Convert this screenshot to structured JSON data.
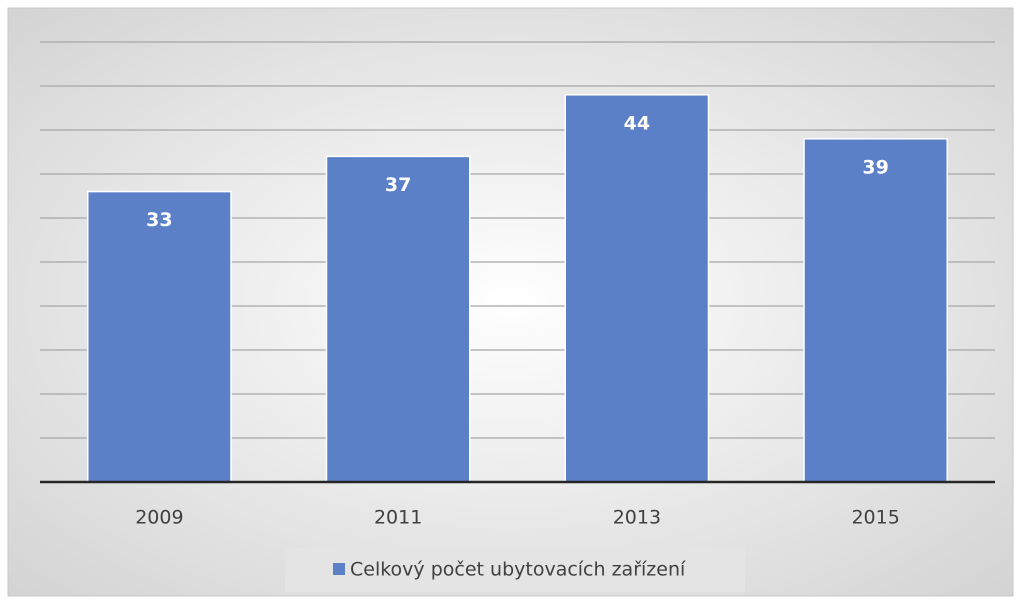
{
  "chart_data": {
    "type": "bar",
    "categories": [
      "2009",
      "2011",
      "2013",
      "2015"
    ],
    "series": [
      {
        "name": "Celkový počet ubytovacích zařízení",
        "color": "#5b80c8",
        "values": [
          33,
          37,
          44,
          39
        ]
      }
    ],
    "ylim": [
      0,
      50
    ],
    "yticks": [
      0,
      5,
      10,
      15,
      20,
      25,
      30,
      35,
      40,
      45,
      50
    ],
    "grid": true,
    "legend": "bottom"
  }
}
